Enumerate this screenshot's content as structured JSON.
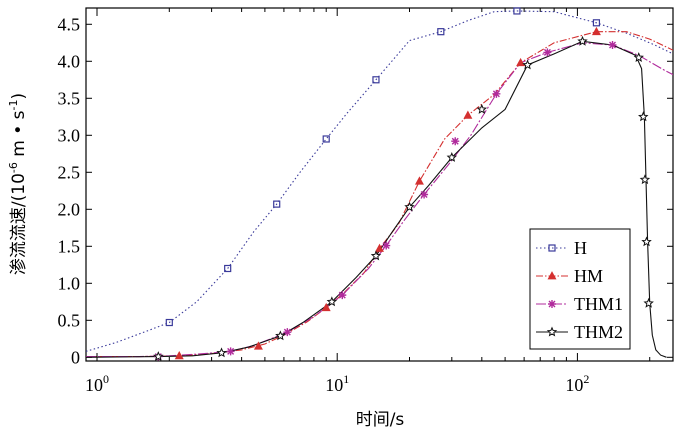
{
  "chart_data": {
    "type": "line",
    "xscale": "log",
    "xlim": [
      0.9,
      250
    ],
    "ylim": [
      -0.05,
      4.72
    ],
    "x_ticks": [
      {
        "value": 1,
        "base": "10",
        "exp": "0"
      },
      {
        "value": 10,
        "base": "10",
        "exp": "1"
      },
      {
        "value": 100,
        "base": "10",
        "exp": "2"
      }
    ],
    "y_ticks": [
      "0",
      "0.5",
      "1.0",
      "1.5",
      "2.0",
      "2.5",
      "3.0",
      "3.5",
      "4.0",
      "4.5"
    ],
    "xlabel": "时间/s",
    "ylabel_main": "渗流流速/(10",
    "ylabel_exp": "-6",
    "ylabel_tail": " m • s",
    "ylabel_exp2": "-1",
    "ylabel_close": ")",
    "grid": false,
    "legend_position": "lower-right",
    "series": [
      {
        "name": "H",
        "color": "#3a3a9a",
        "dash": "1.5,2.5",
        "marker": "square",
        "x": [
          0.9,
          1.2,
          1.6,
          2.0,
          2.6,
          3.5,
          4.5,
          5.6,
          7.0,
          9.0,
          11.0,
          14.5,
          20.0,
          27.0,
          35.0,
          45.0,
          56.0,
          80.0,
          120.0,
          160.0,
          210.0,
          250.0
        ],
        "y": [
          0.08,
          0.2,
          0.35,
          0.47,
          0.75,
          1.2,
          1.7,
          2.07,
          2.5,
          2.95,
          3.3,
          3.75,
          4.28,
          4.4,
          4.55,
          4.67,
          4.68,
          4.67,
          4.52,
          4.38,
          4.22,
          4.1
        ],
        "marker_x": [
          2.0,
          3.5,
          5.6,
          9.0,
          14.5,
          27.0,
          56.0,
          120.0
        ],
        "marker_y": [
          0.47,
          1.2,
          2.07,
          2.95,
          3.75,
          4.4,
          4.68,
          4.52
        ]
      },
      {
        "name": "HM",
        "color": "#d43030",
        "dash": "7,2,1.5,2",
        "marker": "triangle",
        "x": [
          0.9,
          1.5,
          2.2,
          3.0,
          4.0,
          5.0,
          6.0,
          7.5,
          9.0,
          10.5,
          13.0,
          15.0,
          18.0,
          22.0,
          28.0,
          35.0,
          45.0,
          58.0,
          80.0,
          120.0,
          160.0,
          200.0,
          250.0
        ],
        "y": [
          0.01,
          0.01,
          0.02,
          0.05,
          0.1,
          0.18,
          0.3,
          0.48,
          0.67,
          0.85,
          1.15,
          1.47,
          1.8,
          2.38,
          2.95,
          3.27,
          3.55,
          3.98,
          4.25,
          4.4,
          4.4,
          4.3,
          4.15
        ],
        "marker_x": [
          2.2,
          4.7,
          9.0,
          15.0,
          22.0,
          35.0,
          58.0,
          120.0
        ],
        "marker_y": [
          0.02,
          0.15,
          0.67,
          1.47,
          2.38,
          3.27,
          3.98,
          4.4
        ]
      },
      {
        "name": "THM1",
        "color": "#b02b9c",
        "dash": "10,2,2,2",
        "marker": "asterisk",
        "x": [
          0.9,
          1.5,
          2.0,
          2.8,
          3.6,
          4.5,
          6.2,
          8.0,
          10.5,
          13.5,
          16.0,
          19.0,
          23.0,
          29.0,
          36.0,
          46.0,
          58.0,
          75.0,
          105.0,
          140.0,
          180.0,
          230.0,
          250.0
        ],
        "y": [
          0.01,
          0.01,
          0.02,
          0.05,
          0.08,
          0.16,
          0.34,
          0.55,
          0.84,
          1.2,
          1.51,
          1.85,
          2.2,
          2.6,
          3.0,
          3.56,
          3.98,
          4.12,
          4.25,
          4.22,
          4.08,
          3.88,
          3.82
        ],
        "marker_x": [
          1.8,
          3.6,
          6.2,
          10.5,
          16.0,
          23.0,
          31.0,
          46.0,
          75.0,
          140.0
        ],
        "marker_y": [
          0.01,
          0.08,
          0.34,
          0.84,
          1.51,
          2.2,
          2.92,
          3.56,
          4.12,
          4.22
        ]
      },
      {
        "name": "THM2",
        "color": "#111111",
        "dash": "",
        "marker": "star",
        "x": [
          0.9,
          1.8,
          2.5,
          3.3,
          4.3,
          5.8,
          7.2,
          9.5,
          12.0,
          14.5,
          17.0,
          20.0,
          24.0,
          30.0,
          40.0,
          50.0,
          62.0,
          80.0,
          105.0,
          140.0,
          175.0,
          185.0,
          190.0,
          193.0,
          196.0,
          200.0,
          205.0,
          212.0,
          222.0,
          235.0
        ],
        "y": [
          0.0,
          0.01,
          0.02,
          0.06,
          0.14,
          0.29,
          0.47,
          0.75,
          1.08,
          1.37,
          1.7,
          2.03,
          2.32,
          2.7,
          3.1,
          3.35,
          3.95,
          4.1,
          4.27,
          4.22,
          4.08,
          3.9,
          3.25,
          2.4,
          1.56,
          0.73,
          0.3,
          0.1,
          0.03,
          0.0
        ],
        "marker_x": [
          1.8,
          3.3,
          5.8,
          9.5,
          14.5,
          20.0,
          30.0,
          40.0,
          62.0,
          105.0,
          180.0,
          188.0,
          191.0,
          194.0,
          198.0
        ],
        "marker_y": [
          0.01,
          0.06,
          0.29,
          0.75,
          1.37,
          2.03,
          2.7,
          3.35,
          3.95,
          4.27,
          4.05,
          3.25,
          2.4,
          1.56,
          0.73
        ]
      }
    ]
  }
}
